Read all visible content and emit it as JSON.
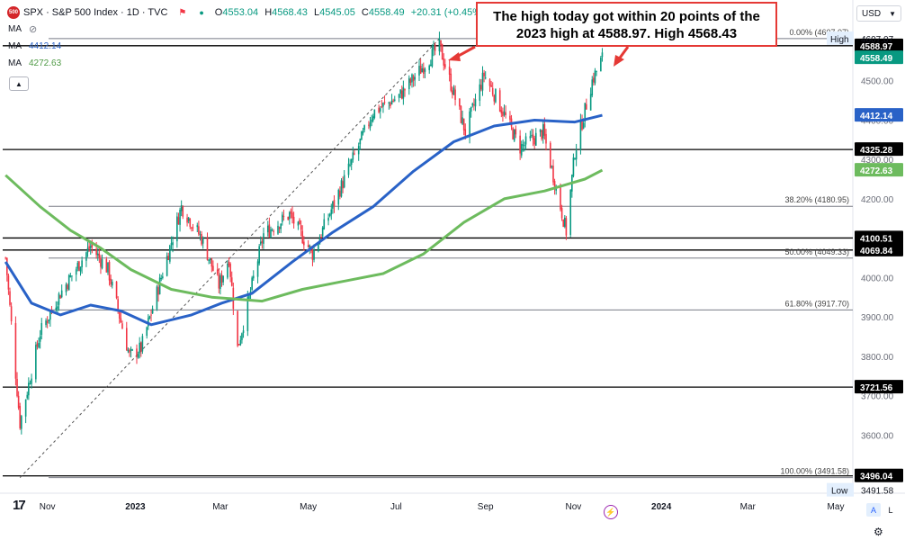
{
  "header": {
    "symbol_line": "SPX · S&P 500 Index · 1D · TVC",
    "badge": "500",
    "ohlc": [
      {
        "k": "O",
        "v": "4553.04"
      },
      {
        "k": "H",
        "v": "4568.43"
      },
      {
        "k": "L",
        "v": "4545.05"
      },
      {
        "k": "C",
        "v": "4558.49"
      },
      {
        "k": "",
        "v": "+20.31 (+0.45%)"
      }
    ],
    "ma_label": "MA",
    "ma1_value": "4412.14",
    "ma2_value": "4272.63",
    "currency": "USD"
  },
  "callout": {
    "line1": "The high today got within 20 points of the",
    "line2": "2023 high at 4588.97. High 4568.43"
  },
  "controls": {
    "auto": "A",
    "log": "L"
  },
  "colors": {
    "up": "#089981",
    "down": "#f23645",
    "ma_short": "#2962c7",
    "ma_long": "#6dbb5e",
    "callout_border": "#e53935"
  },
  "chart_data": {
    "type": "candlestick",
    "title": "SPX · S&P 500 Index · 1D · TVC",
    "ylim": [
      3420,
      4640
    ],
    "x_ticks": [
      "Nov",
      "2023",
      "Mar",
      "May",
      "Jul",
      "Sep",
      "Nov",
      "2024",
      "Mar",
      "May"
    ],
    "x_tick_dates": [
      "2022-11-01",
      "2023-01-01",
      "2023-03-01",
      "2023-05-01",
      "2023-07-01",
      "2023-09-01",
      "2023-11-01",
      "2024-01-01",
      "2024-03-01",
      "2024-05-01"
    ],
    "y_ticks": [
      3600,
      3700,
      3800,
      3900,
      4000,
      4100,
      4200,
      4300,
      4400,
      4500,
      4600
    ],
    "price_path": [
      [
        "2022-10-03",
        4050
      ],
      [
        "2022-10-13",
        3630
      ],
      [
        "2022-10-27",
        3860
      ],
      [
        "2022-11-10",
        3960
      ],
      [
        "2022-12-01",
        4080
      ],
      [
        "2022-12-13",
        4020
      ],
      [
        "2022-12-28",
        3800
      ],
      [
        "2023-01-05",
        3820
      ],
      [
        "2023-02-02",
        4180
      ],
      [
        "2023-02-16",
        4100
      ],
      [
        "2023-02-28",
        3980
      ],
      [
        "2023-03-07",
        4050
      ],
      [
        "2023-03-13",
        3820
      ],
      [
        "2023-03-31",
        4110
      ],
      [
        "2023-04-18",
        4160
      ],
      [
        "2023-05-04",
        4060
      ],
      [
        "2023-05-19",
        4190
      ],
      [
        "2023-06-15",
        4420
      ],
      [
        "2023-07-03",
        4460
      ],
      [
        "2023-07-31",
        4588
      ],
      [
        "2023-08-18",
        4370
      ],
      [
        "2023-08-31",
        4515
      ],
      [
        "2023-09-08",
        4460
      ],
      [
        "2023-09-25",
        4330
      ],
      [
        "2023-10-11",
        4370
      ],
      [
        "2023-10-27",
        4117
      ],
      [
        "2023-11-02",
        4320
      ],
      [
        "2023-11-14",
        4500
      ],
      [
        "2023-11-21",
        4558.49
      ]
    ],
    "series": [
      {
        "name": "MA",
        "value": "4412.14",
        "path": [
          [
            "2022-10-03",
            4040
          ],
          [
            "2022-10-21",
            3935
          ],
          [
            "2022-11-10",
            3905
          ],
          [
            "2022-12-01",
            3930
          ],
          [
            "2022-12-22",
            3915
          ],
          [
            "2023-01-12",
            3880
          ],
          [
            "2023-02-09",
            3905
          ],
          [
            "2023-03-02",
            3935
          ],
          [
            "2023-03-23",
            3960
          ],
          [
            "2023-04-20",
            4040
          ],
          [
            "2023-05-18",
            4115
          ],
          [
            "2023-06-15",
            4180
          ],
          [
            "2023-07-13",
            4270
          ],
          [
            "2023-08-10",
            4345
          ],
          [
            "2023-09-07",
            4385
          ],
          [
            "2023-10-05",
            4400
          ],
          [
            "2023-11-02",
            4395
          ],
          [
            "2023-11-21",
            4412.14
          ]
        ]
      },
      {
        "name": "MA",
        "value": "4272.63",
        "path": [
          [
            "2022-10-03",
            4260
          ],
          [
            "2022-10-27",
            4180
          ],
          [
            "2022-11-17",
            4120
          ],
          [
            "2022-12-08",
            4075
          ],
          [
            "2022-12-29",
            4020
          ],
          [
            "2023-01-26",
            3970
          ],
          [
            "2023-02-23",
            3950
          ],
          [
            "2023-03-30",
            3940
          ],
          [
            "2023-04-27",
            3970
          ],
          [
            "2023-05-25",
            3990
          ],
          [
            "2023-06-22",
            4010
          ],
          [
            "2023-07-20",
            4060
          ],
          [
            "2023-08-17",
            4140
          ],
          [
            "2023-09-14",
            4200
          ],
          [
            "2023-10-12",
            4220
          ],
          [
            "2023-11-09",
            4250
          ],
          [
            "2023-11-21",
            4272.63
          ]
        ]
      }
    ],
    "fibonacci": [
      {
        "label": "0.00% (4607.07)",
        "value": 4607.07
      },
      {
        "label": "38.20% (4180.95)",
        "value": 4180.95
      },
      {
        "label": "50.00% (4049.33)",
        "value": 4049.33
      },
      {
        "label": "61.80% (3917.70)",
        "value": 3917.7
      },
      {
        "label": "100.00% (3491.58)",
        "value": 3491.58
      }
    ],
    "horizontal_levels": [
      {
        "value": 4588.97,
        "label": "4588.97"
      },
      {
        "value": 4325.28,
        "label": "4325.28"
      },
      {
        "value": 4100.51,
        "label": "4100.51"
      },
      {
        "value": 4069.84,
        "label": "4069.84"
      },
      {
        "value": 3721.56,
        "label": "3721.56"
      },
      {
        "value": 3496.04,
        "label": "3496.04"
      }
    ],
    "price_labels": [
      {
        "label": "High",
        "value": 4607.07
      },
      {
        "label": "Low",
        "value": 3491.58
      },
      {
        "label": "Close",
        "value": 4558.49
      },
      {
        "label": "MA",
        "value": 4412.14
      },
      {
        "label": "MA",
        "value": 4272.63
      }
    ],
    "trendline": [
      [
        "2022-10-13",
        3491.58
      ],
      [
        "2023-07-31",
        4607.07
      ]
    ]
  }
}
